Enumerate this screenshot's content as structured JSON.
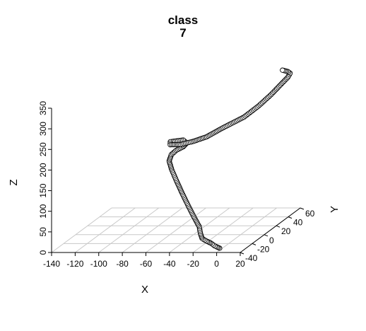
{
  "chart_data": {
    "type": "scatter",
    "title_lines": [
      "class",
      "7"
    ],
    "xlabel": "X",
    "ylabel": "Y",
    "zlabel": "Z",
    "xlim": [
      -140,
      20
    ],
    "ylim": [
      -40,
      60
    ],
    "zlim": [
      0,
      350
    ],
    "x_ticks": [
      "-140",
      "-120",
      "-100",
      "-80",
      "-60",
      "-40",
      "-20",
      "0",
      "20"
    ],
    "y_ticks": [
      "-40",
      "-20",
      "0",
      "20",
      "40",
      "60"
    ],
    "z_ticks": [
      "0",
      "50",
      "100",
      "150",
      "200",
      "250",
      "300",
      "350"
    ],
    "grid": true,
    "marker": "open-circle",
    "series": [
      {
        "points": [
          [
            0,
            -35,
            5
          ],
          [
            -5,
            -33,
            8
          ],
          [
            -10,
            -30,
            12
          ],
          [
            -15,
            -28,
            15
          ],
          [
            -20,
            -25,
            18
          ],
          [
            -25,
            -18,
            23
          ],
          [
            -30,
            -10,
            30
          ],
          [
            -40,
            0,
            45
          ],
          [
            -50,
            10,
            62
          ],
          [
            -60,
            20,
            80
          ],
          [
            -70,
            30,
            100
          ],
          [
            -77,
            36,
            120
          ],
          [
            -79,
            36,
            140
          ],
          [
            -76,
            34,
            158
          ],
          [
            -70,
            30,
            172
          ],
          [
            -62,
            26,
            185
          ],
          [
            -60,
            28,
            192
          ],
          [
            -65,
            32,
            195
          ],
          [
            -75,
            30,
            193
          ],
          [
            -73,
            26,
            190
          ],
          [
            -62,
            22,
            195
          ],
          [
            -50,
            20,
            205
          ],
          [
            -38,
            18,
            218
          ],
          [
            -25,
            20,
            238
          ],
          [
            -10,
            25,
            258
          ],
          [
            0,
            30,
            280
          ],
          [
            8,
            35,
            302
          ],
          [
            14,
            40,
            322
          ],
          [
            18,
            43,
            335
          ],
          [
            19,
            45,
            343
          ],
          [
            16,
            47,
            345
          ],
          [
            10,
            50,
            345
          ]
        ]
      }
    ]
  }
}
